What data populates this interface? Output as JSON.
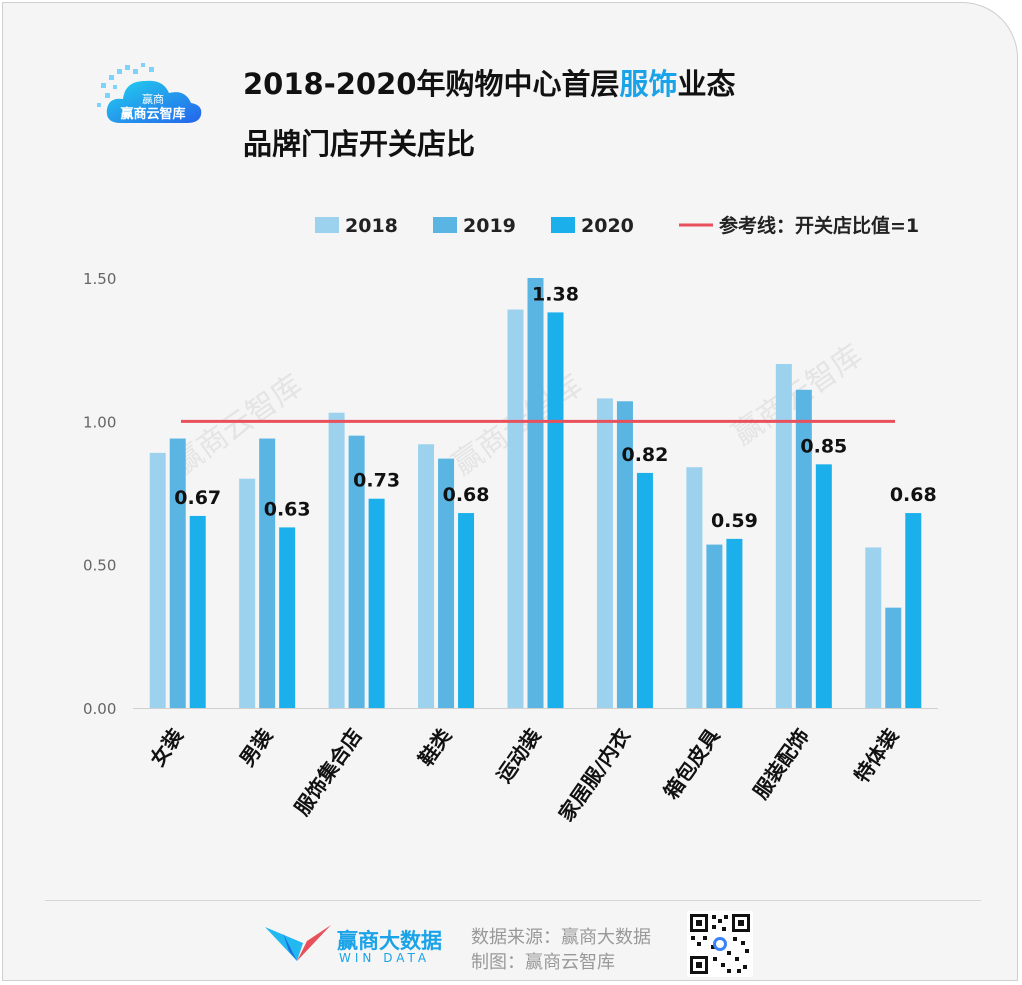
{
  "header": {
    "logo_text": "赢商云智库",
    "title_line1_pre": "2018-2020年购物中心首层",
    "title_line1_hl": "服饰",
    "title_line1_post": "业态",
    "title_line2": "品牌门店开关店比"
  },
  "watermark": "赢商云智库",
  "chart_data": {
    "type": "bar",
    "title": "2018-2020年购物中心首层服饰业态品牌门店开关店比",
    "categories": [
      "女装",
      "男装",
      "服饰集合店",
      "鞋类",
      "运动装",
      "家居服/内衣",
      "箱包皮具",
      "服装配饰",
      "特体装"
    ],
    "series": [
      {
        "name": "2018",
        "color": "#9dd2ee",
        "values": [
          0.89,
          0.8,
          1.03,
          0.92,
          1.39,
          1.08,
          0.84,
          1.2,
          0.56
        ]
      },
      {
        "name": "2019",
        "color": "#5ab5e3",
        "values": [
          0.94,
          0.94,
          0.95,
          0.87,
          1.5,
          1.07,
          0.57,
          1.11,
          0.35
        ]
      },
      {
        "name": "2020",
        "color": "#1bb0ec",
        "values": [
          0.67,
          0.63,
          0.73,
          0.68,
          1.38,
          0.82,
          0.59,
          0.85,
          0.68
        ]
      }
    ],
    "labeled_series": "2020",
    "data_labels": [
      "0.67",
      "0.63",
      "0.73",
      "0.68",
      "1.38",
      "0.82",
      "0.59",
      "0.85",
      "0.68"
    ],
    "reference_line": {
      "name": "参考线：开关店比值=1",
      "value": 1,
      "color": "#e8505b"
    },
    "yticks": [
      "0.00",
      "0.50",
      "1.00",
      "1.50"
    ],
    "ylim": [
      0,
      1.5
    ],
    "grid": false,
    "legend_position": "top-right"
  },
  "footer": {
    "brand_cn": "赢商大数据",
    "brand_en": "WIN DATA",
    "source_line": "数据来源：赢商大数据",
    "made_by_line": "制图：赢商云智库"
  }
}
